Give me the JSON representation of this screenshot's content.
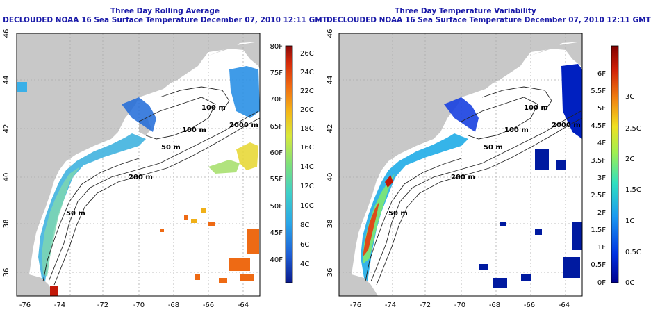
{
  "left_panel": {
    "title": "Three Day Rolling Average",
    "subtitle": "DECLOUDED NOAA 16 Sea Surface Temperature December 07, 2010 12:11 GMT",
    "lon_ticks": [
      "-76",
      "-74",
      "-72",
      "-70",
      "-68",
      "-66",
      "-64"
    ],
    "lat_ticks": [
      "46",
      "44",
      "42",
      "40",
      "38",
      "36"
    ],
    "colorbar": {
      "left_labels": [
        "80F",
        "75F",
        "70F",
        "65F",
        "60F",
        "55F",
        "50F",
        "45F",
        "40F"
      ],
      "right_labels": [
        "26C",
        "24C",
        "22C",
        "20C",
        "18C",
        "16C",
        "14C",
        "12C",
        "10C",
        "8C",
        "6C",
        "4C"
      ]
    },
    "contour_labels": [
      "100 m",
      "2000 m",
      "100 m",
      "50 m",
      "200 m",
      "50 m"
    ]
  },
  "right_panel": {
    "title": "Three Day Temperature Variability",
    "subtitle": "DECLOUDED NOAA 16 Sea Surface Temperature December 07, 2010 12:11 GMT",
    "lon_ticks": [
      "-76",
      "-74",
      "-72",
      "-70",
      "-68",
      "-66",
      "-64"
    ],
    "lat_ticks": [
      "46",
      "44",
      "42",
      "40",
      "38",
      "36"
    ],
    "colorbar": {
      "left_labels": [
        "6F",
        "5.5F",
        "5F",
        "4.5F",
        "4F",
        "3.5F",
        "3F",
        "2.5F",
        "2F",
        "1.5F",
        "1F",
        "0.5F",
        "0F"
      ],
      "right_labels": [
        "3C",
        "2.5C",
        "2C",
        "1.5C",
        "1C",
        "0.5C",
        "0C"
      ]
    },
    "contour_labels": [
      "100 m",
      "2000 m",
      "100 m",
      "50 m",
      "200 m",
      "50 m"
    ]
  },
  "colors": {
    "land": "#c8c8c8",
    "title": "#1a1aa8",
    "temp_scale": [
      "#0a1a8c",
      "#1e5fd6",
      "#2aa6e8",
      "#3fd0c8",
      "#7ee07a",
      "#d8e83a",
      "#f4b818",
      "#f06a12",
      "#d42a0a",
      "#8a0a0a"
    ],
    "var_scale": [
      "#00008c",
      "#0030e0",
      "#1a9af0",
      "#30e0c0",
      "#a0f050",
      "#f0e020",
      "#f08010",
      "#d02008",
      "#800000"
    ]
  }
}
